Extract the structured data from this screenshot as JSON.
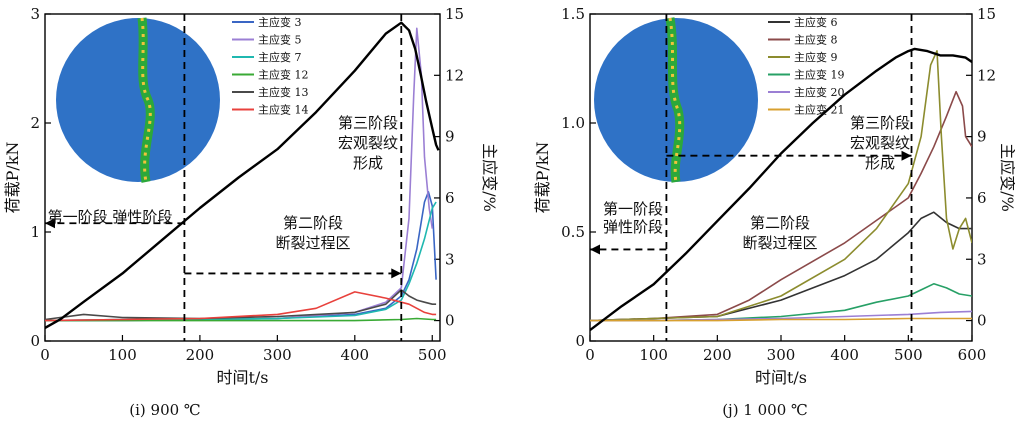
{
  "chart_data": [
    {
      "type": "line",
      "caption": "(i) 900 ℃",
      "xlabel": "时间t/s",
      "ylabel": "荷载P/kN",
      "y2label": "主应变/%",
      "xlim": [
        0,
        510
      ],
      "ylim": [
        0,
        3
      ],
      "y2lim": [
        -1,
        15
      ],
      "xticks": [
        "0",
        "100",
        "200",
        "300",
        "400",
        "500"
      ],
      "yticks": [
        "0",
        "1",
        "2",
        "3"
      ],
      "y2ticks": [
        "0",
        "3",
        "6",
        "9",
        "12",
        "15"
      ],
      "grid": false,
      "legend_position": "top-right",
      "load": {
        "color": "#000000",
        "x": [
          0,
          20,
          50,
          100,
          150,
          200,
          250,
          300,
          350,
          400,
          440,
          460,
          470,
          478,
          485,
          492,
          500,
          505,
          508
        ],
        "y": [
          0.12,
          0.2,
          0.36,
          0.62,
          0.92,
          1.22,
          1.5,
          1.76,
          2.1,
          2.48,
          2.82,
          2.92,
          2.85,
          2.68,
          2.45,
          2.2,
          1.95,
          1.8,
          1.75
        ]
      },
      "series": [
        {
          "name": "主应变 3",
          "color": "#3a66c4",
          "x": [
            0,
            100,
            200,
            300,
            400,
            440,
            460,
            470,
            480,
            490,
            495,
            500,
            505
          ],
          "y": [
            0,
            0.0,
            0.05,
            0.1,
            0.3,
            0.6,
            1.2,
            2.0,
            3.5,
            5.8,
            6.3,
            5.6,
            2.0
          ]
        },
        {
          "name": "主应变 5",
          "color": "#9b7fd4",
          "x": [
            0,
            100,
            200,
            300,
            400,
            440,
            460,
            470,
            476,
            480,
            486,
            490,
            496,
            500
          ],
          "y": [
            0,
            0.05,
            0.05,
            0.1,
            0.4,
            0.9,
            1.6,
            5.0,
            11.0,
            14.3,
            12.0,
            8.0,
            5.5,
            4.5
          ]
        },
        {
          "name": "主应变 7",
          "color": "#1fb8b0",
          "x": [
            0,
            100,
            200,
            300,
            400,
            440,
            460,
            470,
            480,
            490,
            500,
            505
          ],
          "y": [
            0,
            0.05,
            0.05,
            0.1,
            0.25,
            0.55,
            1.0,
            1.8,
            2.8,
            4.0,
            5.5,
            5.8
          ]
        },
        {
          "name": "主应变 12",
          "color": "#3aaa35",
          "x": [
            0,
            100,
            200,
            300,
            400,
            460,
            480,
            500,
            505
          ],
          "y": [
            0,
            0.0,
            0.0,
            0.0,
            0.0,
            0.05,
            0.1,
            0.05,
            0.05
          ]
        },
        {
          "name": "主应变 13",
          "color": "#4a4a4a",
          "x": [
            0,
            50,
            100,
            200,
            300,
            400,
            440,
            460,
            470,
            480,
            490,
            500,
            505
          ],
          "y": [
            0.05,
            0.3,
            0.15,
            0.1,
            0.2,
            0.4,
            0.8,
            1.5,
            1.2,
            1.0,
            0.9,
            0.8,
            0.8
          ]
        },
        {
          "name": "主应变 14",
          "color": "#e8413c",
          "x": [
            0,
            100,
            200,
            300,
            350,
            400,
            440,
            460,
            470,
            480,
            490,
            500,
            505
          ],
          "y": [
            0,
            0.05,
            0.1,
            0.3,
            0.6,
            1.4,
            1.1,
            0.9,
            0.8,
            0.6,
            0.4,
            0.3,
            0.3
          ]
        }
      ],
      "annotations": [
        {
          "text": "第一阶段 弹性阶段"
        },
        {
          "text": "第二阶段"
        },
        {
          "text": "断裂过程区"
        },
        {
          "text": "第三阶段"
        },
        {
          "text": "宏观裂纹"
        },
        {
          "text": "形成"
        }
      ],
      "stage_lines_x": [
        180,
        460
      ],
      "arrows": [
        {
          "from": [
            180,
            1.08
          ],
          "to": [
            0,
            1.08
          ]
        },
        {
          "from": [
            180,
            0.62
          ],
          "to": [
            460,
            0.62
          ]
        }
      ]
    },
    {
      "type": "line",
      "caption": "(j) 1 000 ℃",
      "xlabel": "时间t/s",
      "ylabel": "荷载P/kN",
      "y2label": "主应变/%",
      "xlim": [
        0,
        600
      ],
      "ylim": [
        0,
        1.5
      ],
      "y2lim": [
        -1,
        15
      ],
      "xticks": [
        "0",
        "100",
        "200",
        "300",
        "400",
        "500",
        "600"
      ],
      "yticks": [
        "0",
        "0.5",
        "1.0",
        "1.5"
      ],
      "y2ticks": [
        "0",
        "3",
        "6",
        "9",
        "12",
        "15"
      ],
      "grid": false,
      "legend_position": "top-right",
      "load": {
        "color": "#000000",
        "x": [
          0,
          50,
          100,
          150,
          200,
          250,
          300,
          350,
          400,
          450,
          480,
          500,
          510,
          530,
          550,
          570,
          590,
          600
        ],
        "y": [
          0.05,
          0.16,
          0.26,
          0.4,
          0.55,
          0.7,
          0.86,
          1.0,
          1.13,
          1.24,
          1.3,
          1.33,
          1.34,
          1.33,
          1.31,
          1.31,
          1.3,
          1.28
        ]
      },
      "series": [
        {
          "name": "主应变 6",
          "color": "#333333",
          "x": [
            0,
            100,
            200,
            300,
            400,
            450,
            500,
            520,
            540,
            560,
            580,
            600
          ],
          "y": [
            0,
            0.1,
            0.2,
            1.0,
            2.2,
            3.0,
            4.3,
            5.0,
            5.3,
            4.8,
            4.5,
            4.5
          ]
        },
        {
          "name": "主应变 8",
          "color": "#8b4a4a",
          "x": [
            0,
            100,
            200,
            250,
            300,
            400,
            450,
            500,
            520,
            540,
            560,
            575,
            585,
            590,
            600
          ],
          "y": [
            0,
            0.1,
            0.3,
            1.0,
            2.0,
            3.8,
            4.9,
            6.0,
            7.2,
            8.5,
            10.0,
            11.2,
            10.5,
            9.0,
            8.5
          ]
        },
        {
          "name": "主应变 9",
          "color": "#8c8c2e",
          "x": [
            0,
            100,
            200,
            300,
            400,
            450,
            500,
            520,
            535,
            545,
            552,
            560,
            570,
            580,
            590,
            600
          ],
          "y": [
            0,
            0.1,
            0.2,
            1.2,
            3.0,
            4.5,
            6.7,
            9.0,
            12.5,
            13.2,
            9.0,
            5.0,
            3.5,
            4.5,
            5.0,
            3.8
          ]
        },
        {
          "name": "主应变 19",
          "color": "#27a066",
          "x": [
            0,
            100,
            200,
            300,
            400,
            450,
            500,
            520,
            540,
            560,
            580,
            600
          ],
          "y": [
            0,
            0.0,
            0.05,
            0.2,
            0.5,
            0.9,
            1.2,
            1.5,
            1.8,
            1.6,
            1.3,
            1.2
          ]
        },
        {
          "name": "主应变 20",
          "color": "#9b7fd4",
          "x": [
            0,
            100,
            200,
            300,
            400,
            500,
            550,
            600
          ],
          "y": [
            0,
            0.0,
            0.05,
            0.1,
            0.2,
            0.3,
            0.4,
            0.45
          ]
        },
        {
          "name": "主应变 21",
          "color": "#d8a030",
          "x": [
            0,
            100,
            200,
            300,
            400,
            500,
            600
          ],
          "y": [
            0,
            0.0,
            0.0,
            0.05,
            0.05,
            0.1,
            0.1
          ]
        }
      ],
      "annotations": [
        {
          "text": "第一阶段"
        },
        {
          "text": "弹性阶段"
        },
        {
          "text": "第二阶段"
        },
        {
          "text": "断裂过程区"
        },
        {
          "text": "第三阶段"
        },
        {
          "text": "宏观裂纹"
        },
        {
          "text": "形成"
        }
      ],
      "stage_lines_x": [
        120,
        505
      ],
      "arrows": [
        {
          "from": [
            120,
            0.42
          ],
          "to": [
            0,
            0.42
          ]
        },
        {
          "from": [
            120,
            0.85
          ],
          "to": [
            505,
            0.85
          ]
        }
      ]
    }
  ]
}
